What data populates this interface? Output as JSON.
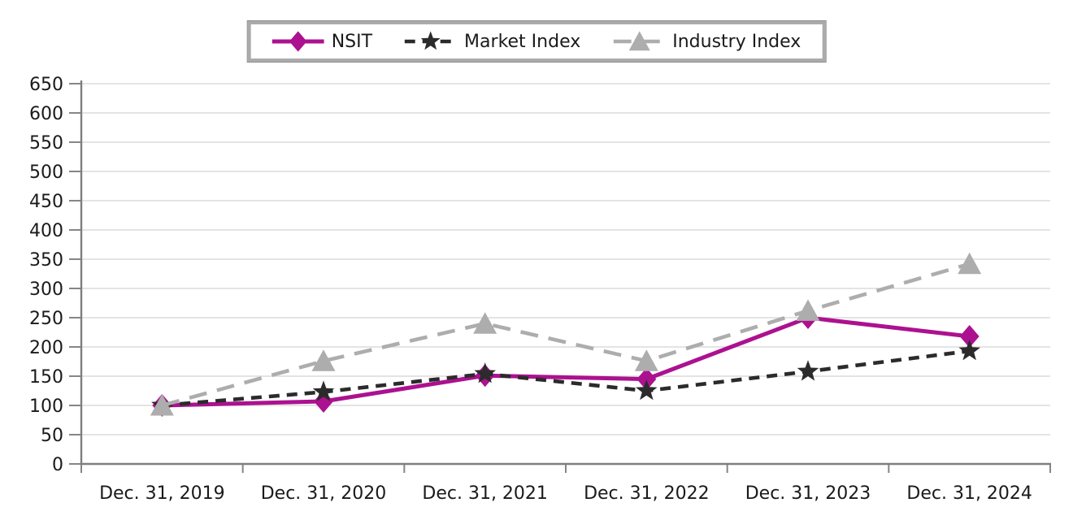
{
  "chart_data": {
    "type": "line",
    "x": [
      "Dec. 31, 2019",
      "Dec. 31, 2020",
      "Dec. 31, 2021",
      "Dec. 31, 2022",
      "Dec. 31, 2023",
      "Dec. 31, 2024"
    ],
    "ylim": [
      0,
      650
    ],
    "y_tick_step": 50,
    "y_tick_labels": [
      "0",
      "50",
      "100",
      "150",
      "200",
      "250",
      "300",
      "350",
      "400",
      "450",
      "500",
      "550",
      "600",
      "650"
    ],
    "grid": true,
    "legend_position": "top-center",
    "series": [
      {
        "name": "NSIT",
        "values": [
          100,
          107,
          151,
          145,
          250,
          218
        ],
        "color": "#AC1190",
        "marker": "diamond",
        "line_style": "solid"
      },
      {
        "name": "Market Index",
        "values": [
          100,
          123,
          154,
          125,
          158,
          193
        ],
        "color": "#2B2B2B",
        "marker": "star",
        "line_style": "dashed"
      },
      {
        "name": "Industry Index",
        "values": [
          100,
          176,
          240,
          176,
          262,
          342
        ],
        "color": "#ADADAD",
        "marker": "triangle",
        "line_style": "long-dash"
      }
    ]
  },
  "colors": {
    "background": "#FFFFFF",
    "gridline": "#DCDCDC",
    "axis": "#7E7E7E",
    "tick": "#868686",
    "text": "#1A1A1A",
    "legend_border": "#ABABAB"
  }
}
